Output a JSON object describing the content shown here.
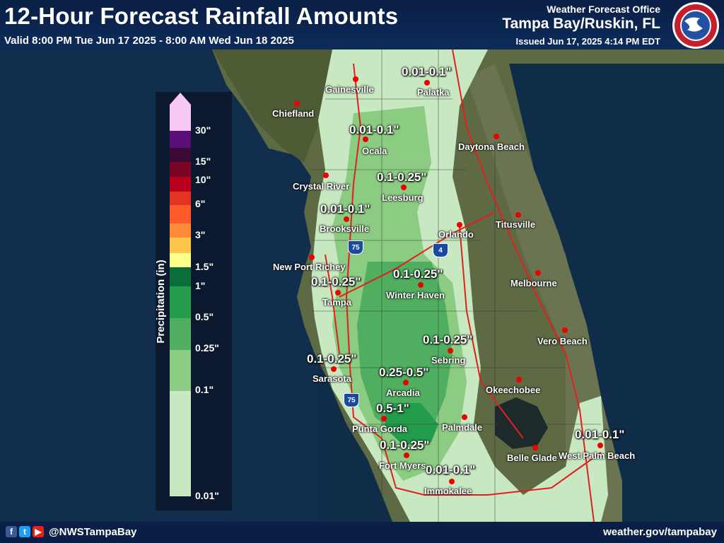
{
  "header": {
    "title": "12-Hour Forecast Rainfall Amounts",
    "valid": "Valid 8:00 PM Tue Jun 17 2025 - 8:00 AM Wed Jun 18 2025",
    "office": "Weather Forecast Office",
    "location": "Tampa Bay/Ruskin, FL",
    "issued": "Issued Jun 17, 2025 4:14 PM EDT"
  },
  "footer": {
    "handle": "@NWSTampaBay",
    "website": "weather.gov/tampabay"
  },
  "legend": {
    "title": "Precipitation (in)",
    "ticks": [
      "30\"",
      "15\"",
      "10\"",
      "6\"",
      "3\"",
      "1.5\"",
      "1\"",
      "0.5\"",
      "0.25\"",
      "0.1\"",
      "0.01\""
    ],
    "colors": [
      "#f8c8f4",
      "#5a0f78",
      "#3c0a37",
      "#7a0525",
      "#b8001e",
      "#e23521",
      "#ff5b2c",
      "#ff8c38",
      "#ffc54c",
      "#ffff8c",
      "#0b6e3a",
      "#239c4c",
      "#4fae60",
      "#8ccc82",
      "#c7e8c0"
    ]
  },
  "cities": [
    "Gainesville",
    "Palatka",
    "Chiefland",
    "Ocala",
    "Daytona Beach",
    "Crystal River",
    "Leesburg",
    "Brooksville",
    "Orlando",
    "Titusville",
    "New Port Richey",
    "Tampa",
    "Winter Haven",
    "Melbourne",
    "Vero Beach",
    "Sebring",
    "Sarasota",
    "Arcadia",
    "Okeechobee",
    "Punta Gorda",
    "Palmdale",
    "Belle Glade",
    "West Palm Beach",
    "Fort Myers",
    "Immokalee"
  ],
  "amounts": [
    "0.01-0.1\"",
    "0.01-0.1\"",
    "0.1-0.25\"",
    "0.01-0.1\"",
    "0.1-0.25\"",
    "0.1-0.25\"",
    "0.1-0.25\"",
    "0.1-0.25\"",
    "0.25-0.5\"",
    "0.5-1\"",
    "0.1-0.25\"",
    "0.01-0.1\"",
    "0.01-0.1\""
  ],
  "highways": [
    "75",
    "4",
    "75"
  ]
}
